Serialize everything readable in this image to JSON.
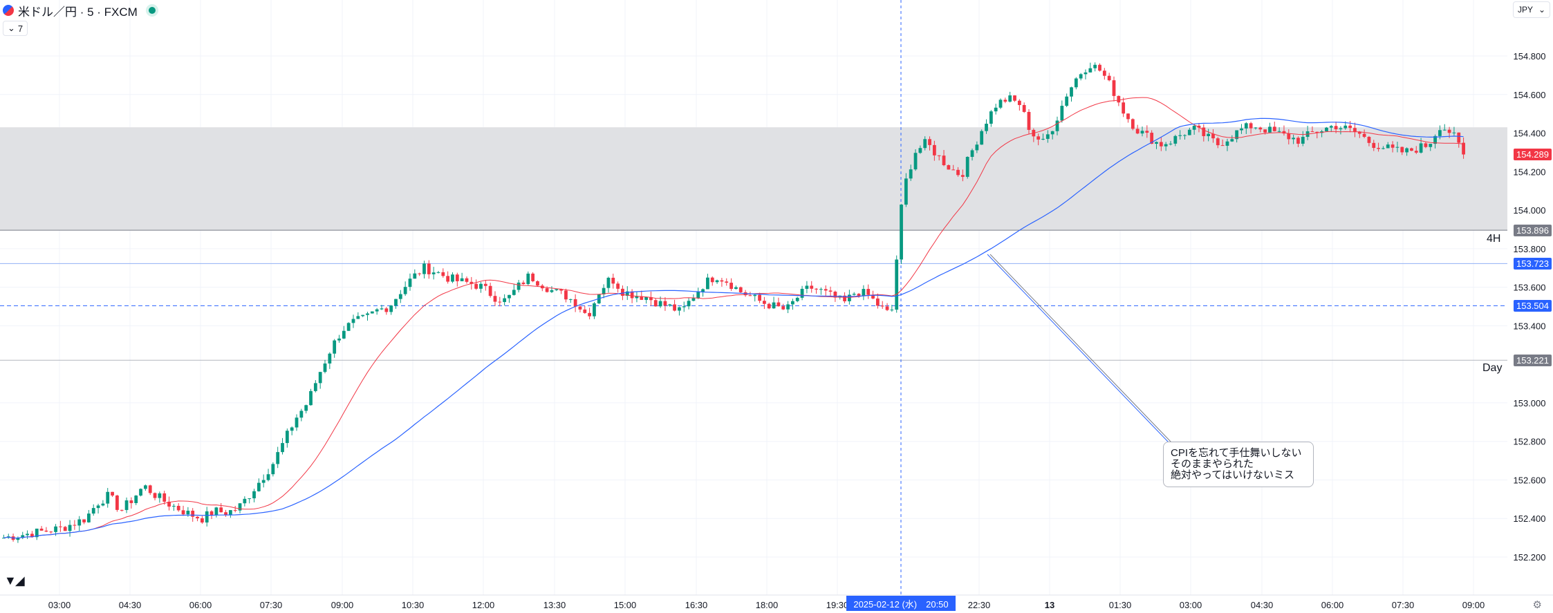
{
  "header": {
    "symbol": "米ドル／円 · 5 · FXCM",
    "indicator_count": "7",
    "currency": "JPY"
  },
  "chart_data": {
    "type": "candlestick",
    "x_axis_ticks": [
      "03:00",
      "04:30",
      "06:00",
      "07:30",
      "09:00",
      "10:30",
      "12:00",
      "13:30",
      "15:00",
      "16:30",
      "18:00",
      "19:30",
      "22:30",
      "13",
      "01:30",
      "03:00",
      "04:30",
      "06:00",
      "07:30",
      "09:00"
    ],
    "crosshair_date_label": "2025-02-12 (水)　20:50",
    "y_axis_ticks": [
      "154.800",
      "154.600",
      "154.400",
      "154.200",
      "154.000",
      "153.800",
      "153.600",
      "153.400",
      "153.000",
      "152.800",
      "152.600",
      "152.400",
      "152.200"
    ],
    "ylim": [
      152.1,
      155.1
    ],
    "price_labels": [
      {
        "text": "154.289",
        "value": 154.289,
        "color": "#f23645"
      },
      {
        "text": "153.896",
        "value": 153.896,
        "color": "#787b86"
      },
      {
        "text": "153.723",
        "value": 153.723,
        "color": "#2962ff"
      },
      {
        "text": "153.504",
        "value": 153.504,
        "color": "#2962ff"
      },
      {
        "text": "153.221",
        "value": 153.221,
        "color": "#787b86"
      }
    ],
    "zone": {
      "top": 154.43,
      "bottom": 153.896
    },
    "side_labels": [
      {
        "text": "4H",
        "value": 153.85
      },
      {
        "text": "Day",
        "value": 153.18
      }
    ],
    "price_path": [
      [
        0,
        152.3
      ],
      [
        3,
        152.33
      ],
      [
        5,
        152.35
      ],
      [
        7,
        152.4
      ],
      [
        8,
        152.48
      ],
      [
        9,
        152.52
      ],
      [
        10,
        152.44
      ],
      [
        11,
        152.5
      ],
      [
        12,
        152.57
      ],
      [
        13,
        152.52
      ],
      [
        14,
        152.48
      ],
      [
        15,
        152.45
      ],
      [
        16,
        152.42
      ],
      [
        17,
        152.4
      ],
      [
        18,
        152.44
      ],
      [
        19,
        152.43
      ],
      [
        20,
        152.45
      ],
      [
        21,
        152.52
      ],
      [
        22,
        152.6
      ],
      [
        23,
        152.68
      ],
      [
        24,
        152.8
      ],
      [
        25,
        152.92
      ],
      [
        26,
        153.0
      ],
      [
        27,
        153.15
      ],
      [
        28,
        153.28
      ],
      [
        29,
        153.38
      ],
      [
        30,
        153.42
      ],
      [
        31,
        153.44
      ],
      [
        32,
        153.48
      ],
      [
        33,
        153.5
      ],
      [
        34,
        153.58
      ],
      [
        35,
        153.65
      ],
      [
        36,
        153.7
      ],
      [
        37,
        153.68
      ],
      [
        38,
        153.65
      ],
      [
        39,
        153.63
      ],
      [
        40,
        153.62
      ],
      [
        41,
        153.6
      ],
      [
        42,
        153.55
      ],
      [
        43,
        153.53
      ],
      [
        44,
        153.6
      ],
      [
        45,
        153.66
      ],
      [
        46,
        153.62
      ],
      [
        47,
        153.58
      ],
      [
        48,
        153.56
      ],
      [
        49,
        153.52
      ],
      [
        50,
        153.45
      ],
      [
        51,
        153.58
      ],
      [
        52,
        153.65
      ],
      [
        53,
        153.58
      ],
      [
        54,
        153.56
      ],
      [
        55,
        153.55
      ],
      [
        56,
        153.52
      ],
      [
        57,
        153.5
      ],
      [
        58,
        153.47
      ],
      [
        59,
        153.55
      ],
      [
        60,
        153.62
      ],
      [
        61,
        153.66
      ],
      [
        62,
        153.63
      ],
      [
        63,
        153.58
      ],
      [
        64,
        153.55
      ],
      [
        65,
        153.52
      ],
      [
        66,
        153.5
      ],
      [
        67,
        153.48
      ],
      [
        68,
        153.55
      ],
      [
        69,
        153.6
      ],
      [
        70,
        153.58
      ],
      [
        71,
        153.55
      ],
      [
        72,
        153.52
      ],
      [
        73,
        153.58
      ],
      [
        74,
        153.56
      ],
      [
        75,
        153.5
      ],
      [
        76,
        153.45
      ],
      [
        77,
        154.1
      ],
      [
        78,
        154.3
      ],
      [
        79,
        154.35
      ],
      [
        80,
        154.28
      ],
      [
        81,
        154.22
      ],
      [
        82,
        154.18
      ],
      [
        83,
        154.32
      ],
      [
        84,
        154.45
      ],
      [
        85,
        154.55
      ],
      [
        86,
        154.58
      ],
      [
        87,
        154.55
      ],
      [
        88,
        154.4
      ],
      [
        89,
        154.35
      ],
      [
        90,
        154.45
      ],
      [
        91,
        154.6
      ],
      [
        92,
        154.7
      ],
      [
        93,
        154.76
      ],
      [
        94,
        154.72
      ],
      [
        95,
        154.62
      ],
      [
        96,
        154.5
      ],
      [
        97,
        154.42
      ],
      [
        98,
        154.38
      ],
      [
        99,
        154.34
      ],
      [
        100,
        154.36
      ],
      [
        101,
        154.4
      ],
      [
        102,
        154.42
      ],
      [
        103,
        154.38
      ],
      [
        104,
        154.34
      ],
      [
        105,
        154.38
      ],
      [
        106,
        154.42
      ],
      [
        107,
        154.44
      ],
      [
        108,
        154.42
      ],
      [
        109,
        154.4
      ],
      [
        110,
        154.38
      ],
      [
        111,
        154.36
      ],
      [
        112,
        154.4
      ],
      [
        113,
        154.42
      ],
      [
        114,
        154.44
      ],
      [
        115,
        154.42
      ],
      [
        116,
        154.4
      ],
      [
        117,
        154.35
      ],
      [
        118,
        154.33
      ],
      [
        119,
        154.31
      ],
      [
        120,
        154.3
      ],
      [
        121,
        154.32
      ],
      [
        122,
        154.34
      ],
      [
        123,
        154.44
      ],
      [
        124,
        154.4
      ],
      [
        125,
        154.289
      ]
    ],
    "annotation": "CPIを忘れて手仕舞いしない\nそのままやられた\n絶対やってはいけないミス",
    "colors": {
      "up": "#089981",
      "down": "#f23645",
      "ma_fast": "#f23645",
      "ma_slow": "#2962ff",
      "zone": "#e0e1e4"
    }
  }
}
